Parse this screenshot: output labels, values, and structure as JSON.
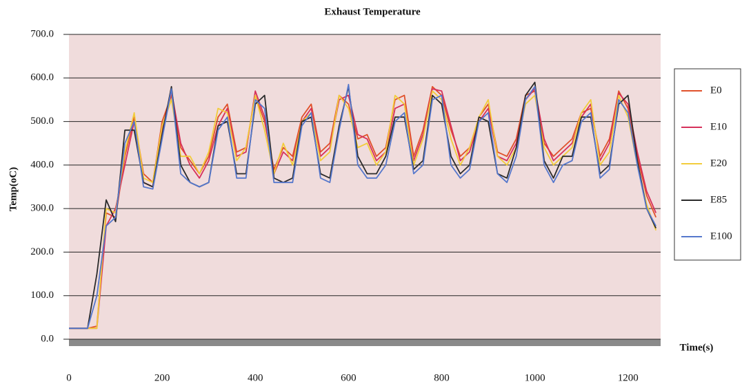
{
  "chart_data": {
    "type": "line",
    "title": "Exhaust Temperature",
    "y_label": "Temp(oC)",
    "x_label": "Time(s)",
    "x": [
      0,
      20,
      40,
      60,
      80,
      100,
      120,
      140,
      160,
      180,
      200,
      220,
      240,
      260,
      280,
      300,
      320,
      340,
      360,
      380,
      400,
      420,
      440,
      460,
      480,
      500,
      520,
      540,
      560,
      580,
      600,
      620,
      640,
      660,
      680,
      700,
      720,
      740,
      760,
      780,
      800,
      820,
      840,
      860,
      880,
      900,
      920,
      940,
      960,
      980,
      1000,
      1020,
      1040,
      1060,
      1080,
      1100,
      1120,
      1140,
      1160,
      1180,
      1200,
      1220,
      1240,
      1260
    ],
    "series": [
      {
        "name": "E0",
        "color": "#e0502a",
        "values": [
          25,
          25,
          25,
          30,
          290,
          280,
          420,
          510,
          380,
          360,
          500,
          560,
          440,
          410,
          380,
          420,
          510,
          540,
          430,
          440,
          560,
          500,
          390,
          440,
          420,
          510,
          540,
          430,
          450,
          560,
          540,
          460,
          470,
          420,
          440,
          550,
          560,
          420,
          480,
          580,
          560,
          480,
          420,
          440,
          510,
          540,
          430,
          420,
          460,
          560,
          570,
          450,
          420,
          440,
          460,
          520,
          530,
          420,
          460,
          570,
          530,
          420,
          330,
          280
        ]
      },
      {
        "name": "E10",
        "color": "#d6305a",
        "values": [
          25,
          25,
          25,
          25,
          260,
          300,
          400,
          500,
          360,
          350,
          480,
          570,
          450,
          400,
          370,
          410,
          490,
          530,
          420,
          430,
          570,
          510,
          380,
          430,
          410,
          500,
          530,
          420,
          440,
          550,
          560,
          470,
          460,
          410,
          430,
          530,
          540,
          410,
          470,
          575,
          570,
          490,
          410,
          430,
          500,
          530,
          420,
          410,
          450,
          550,
          575,
          460,
          410,
          430,
          450,
          510,
          540,
          410,
          450,
          565,
          540,
          430,
          340,
          290
        ]
      },
      {
        "name": "E20",
        "color": "#f2cc3a",
        "values": [
          25,
          25,
          25,
          25,
          300,
          290,
          430,
          520,
          370,
          360,
          490,
          550,
          420,
          420,
          380,
          430,
          530,
          520,
          410,
          440,
          560,
          480,
          380,
          450,
          400,
          500,
          520,
          410,
          430,
          560,
          530,
          440,
          450,
          400,
          430,
          560,
          540,
          400,
          460,
          570,
          550,
          460,
          400,
          440,
          510,
          550,
          420,
          400,
          440,
          540,
          560,
          440,
          400,
          420,
          440,
          520,
          550,
          400,
          430,
          560,
          510,
          400,
          310,
          250
        ]
      },
      {
        "name": "E85",
        "color": "#2a2a2a",
        "values": [
          25,
          25,
          25,
          150,
          320,
          270,
          480,
          480,
          360,
          350,
          470,
          580,
          400,
          360,
          350,
          360,
          490,
          500,
          380,
          380,
          540,
          560,
          370,
          360,
          370,
          500,
          510,
          380,
          370,
          490,
          580,
          420,
          380,
          380,
          420,
          510,
          510,
          390,
          410,
          560,
          540,
          420,
          380,
          400,
          510,
          500,
          380,
          370,
          440,
          560,
          590,
          410,
          370,
          420,
          420,
          510,
          510,
          380,
          400,
          540,
          560,
          410,
          300,
          255
        ]
      },
      {
        "name": "E100",
        "color": "#5577cc",
        "values": [
          25,
          25,
          25,
          100,
          260,
          280,
          450,
          500,
          350,
          345,
          460,
          575,
          380,
          360,
          350,
          360,
          480,
          510,
          370,
          370,
          550,
          530,
          360,
          360,
          360,
          490,
          520,
          370,
          360,
          480,
          585,
          400,
          370,
          370,
          400,
          500,
          520,
          380,
          400,
          550,
          560,
          400,
          370,
          390,
          500,
          520,
          380,
          360,
          420,
          550,
          580,
          400,
          360,
          400,
          410,
          500,
          520,
          370,
          390,
          550,
          520,
          400,
          300,
          260
        ]
      }
    ],
    "xlim": [
      0,
      1270
    ],
    "xticks": [
      0,
      200,
      400,
      600,
      800,
      1000,
      1200
    ],
    "ylim": [
      0,
      700
    ],
    "yticks": [
      {
        "value": 0,
        "label": "0.0"
      },
      {
        "value": 100,
        "label": "100.0"
      },
      {
        "value": 200,
        "label": "200.0"
      },
      {
        "value": 300,
        "label": "300.0"
      },
      {
        "value": 400,
        "label": "400.0"
      },
      {
        "value": 500,
        "label": "500.0"
      },
      {
        "value": 600,
        "label": "600.0"
      },
      {
        "value": 700,
        "label": "700.0"
      }
    ],
    "grid": true,
    "legend": "right"
  }
}
